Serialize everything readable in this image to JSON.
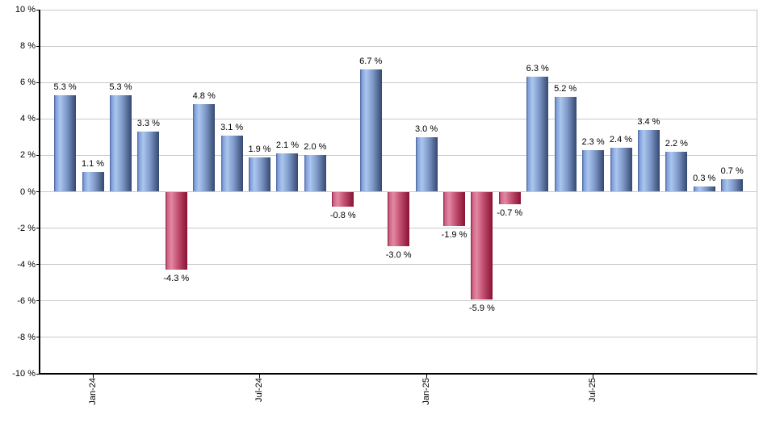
{
  "chart_data": {
    "type": "bar",
    "title": "",
    "xlabel": "",
    "ylabel": "",
    "values": [
      5.3,
      1.1,
      5.3,
      3.3,
      -4.3,
      4.8,
      3.1,
      1.9,
      2.1,
      2.0,
      -0.8,
      6.7,
      -3.0,
      3.0,
      -1.9,
      -5.9,
      -0.7,
      6.3,
      5.2,
      2.3,
      2.4,
      3.4,
      2.2,
      0.3,
      0.7
    ],
    "bar_labels": [
      "5.3 %",
      "1.1 %",
      "5.3 %",
      "3.3 %",
      "-4.3 %",
      "4.8 %",
      "3.1 %",
      "1.9 %",
      "2.1 %",
      "2.0 %",
      "-0.8 %",
      "6.7 %",
      "-3.0 %",
      "3.0 %",
      "-1.9 %",
      "-5.9 %",
      "-0.7 %",
      "6.3 %",
      "5.2 %",
      "2.3 %",
      "2.4 %",
      "3.4 %",
      "2.2 %",
      "0.3 %",
      "0.7 %"
    ],
    "x_tick_labels": [
      {
        "index": 1,
        "label": "Jan-24"
      },
      {
        "index": 7,
        "label": "Jul-24"
      },
      {
        "index": 13,
        "label": "Jan-25"
      },
      {
        "index": 19,
        "label": "Jul-25"
      }
    ],
    "y_tick_labels": [
      "10 %",
      "8 %",
      "6 %",
      "4 %",
      "2 %",
      "0 %",
      "-2 %",
      "-4 %",
      "-6 %",
      "-8 %",
      "-10 %"
    ],
    "ylim": [
      -10,
      10
    ],
    "y_tick_step": 2,
    "grid": "horizontal",
    "legend": "none",
    "colors": {
      "background": "#ffffff",
      "gridline": "#c9c9c9",
      "axis": "#000000",
      "label_text": "#000000",
      "plot_border_right": "#c0c0c0",
      "positive_bar_gradient": [
        "#4a5f96",
        "#7f9fda",
        "#abc6ee",
        "#7e99c9",
        "#35486f"
      ],
      "negative_bar_gradient": [
        "#8f1c40",
        "#cb6484",
        "#e388a3",
        "#c14d6f",
        "#871232"
      ]
    }
  }
}
